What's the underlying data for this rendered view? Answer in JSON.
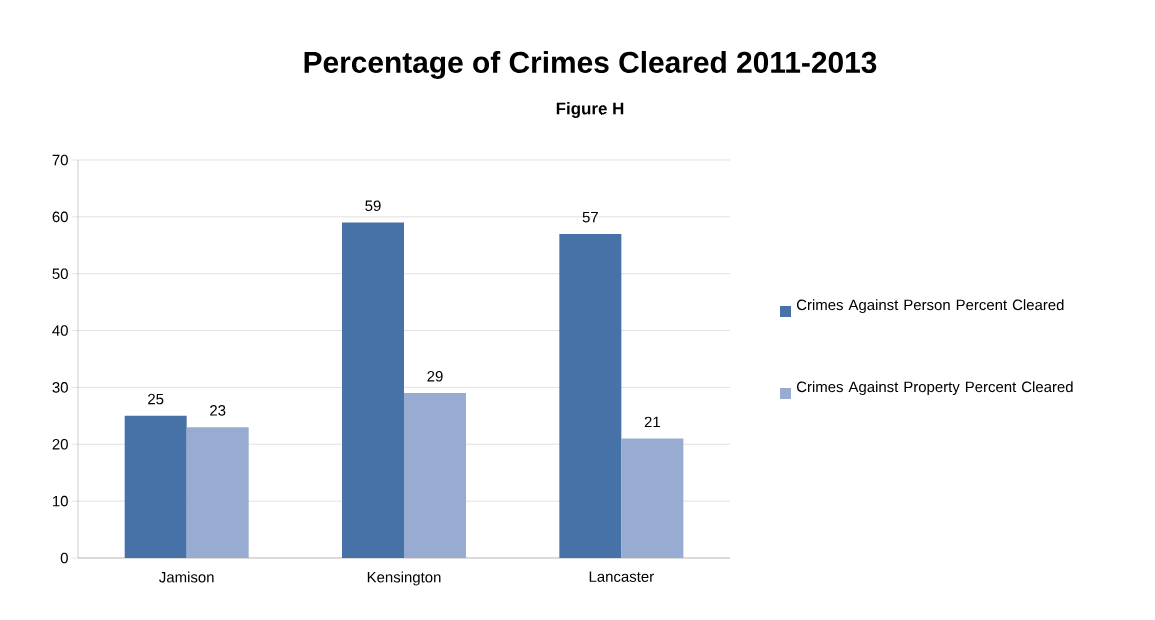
{
  "chart_data": {
    "type": "bar",
    "title": "Percentage of Crimes Cleared 2011-2013",
    "subtitle": "Figure H",
    "categories": [
      "Jamison",
      "Kensington",
      "Lancaster"
    ],
    "series": [
      {
        "name": "Crimes Against Person Percent Cleared",
        "color": "#4672a8",
        "values": [
          25,
          59,
          57
        ]
      },
      {
        "name": "Crimes Against Property Percent Cleared",
        "color": "#98abd1",
        "values": [
          23,
          29,
          21
        ]
      }
    ],
    "ylim": [
      0,
      70
    ],
    "yticks": [
      0,
      10,
      20,
      30,
      40,
      50,
      60,
      70
    ],
    "grid": "y",
    "legend": "right",
    "data_labels": true
  }
}
